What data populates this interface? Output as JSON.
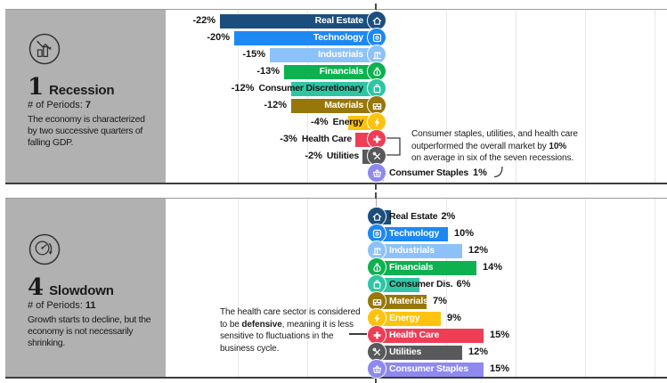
{
  "palette": {
    "sidebar_bg": "#b1b1b1",
    "panel_border": "#3c3c3c",
    "gridline": "#e8e8e8",
    "axis": "#ababab",
    "text": "#1a1a1a",
    "real_estate": "#1c4e7d",
    "technology": "#1e88f2",
    "industrials": "#8cc2f9",
    "financials": "#0db14f",
    "consumer_discretionary": "#2fc5a4",
    "materials": "#97770a",
    "energy": "#fec30f",
    "health_care": "#ef3d56",
    "utilities": "#58595b",
    "consumer_staples": "#8e89ee"
  },
  "panels": [
    {
      "number": "1",
      "title": "Recession",
      "periods_label": "# of Periods:",
      "periods_value": "7",
      "icon": "declining-chart-icon",
      "description_lines": [
        "The economy is characterized",
        "by two successive quarters of",
        "falling GDP."
      ],
      "bars": [
        {
          "sector": "Real Estate",
          "value": -22,
          "display": "-22%",
          "color": "#1c4e7d",
          "icon": "house-icon",
          "label": "in"
        },
        {
          "sector": "Technology",
          "value": -20,
          "display": "-20%",
          "color": "#1e88f2",
          "icon": "monitor-icon",
          "label": "in"
        },
        {
          "sector": "Industrials",
          "value": -15,
          "display": "-15%",
          "color": "#8cc2f9",
          "icon": "crane-icon",
          "label": "in"
        },
        {
          "sector": "Financials",
          "value": -13,
          "display": "-13%",
          "color": "#0db14f",
          "icon": "money-bag-icon",
          "label": "in"
        },
        {
          "sector": "Consumer Discretionary",
          "value": -12,
          "display": "-12%",
          "color": "#2fc5a4",
          "icon": "shopping-bag-icon",
          "label": "over"
        },
        {
          "sector": "Materials",
          "value": -12,
          "display": "-12%",
          "color": "#97770a",
          "icon": "bricks-icon",
          "label": "in"
        },
        {
          "sector": "Energy",
          "value": -4,
          "display": "-4%",
          "color": "#fec30f",
          "icon": "lightning-icon",
          "label": "over"
        },
        {
          "sector": "Health Care",
          "value": -3,
          "display": "-3%",
          "color": "#ef3d56",
          "icon": "medical-cross-icon",
          "label": "out"
        },
        {
          "sector": "Utilities",
          "value": -2,
          "display": "-2%",
          "color": "#58595b",
          "icon": "tools-icon",
          "label": "out"
        },
        {
          "sector": "Consumer Staples",
          "value": 1,
          "display": "1%",
          "color": "#8e89ee",
          "icon": "basket-icon",
          "label": "right"
        }
      ],
      "annotation": {
        "lines": [
          [
            {
              "t": "Consumer staples, utilities, and health care"
            }
          ],
          [
            {
              "t": "outperformed the overall market by "
            },
            {
              "t": "10%",
              "b": true
            }
          ],
          [
            {
              "t": "on average in six of the seven recessions."
            }
          ]
        ]
      }
    },
    {
      "number": "4",
      "title": "Slowdown",
      "periods_label": "# of Periods:",
      "periods_value": "11",
      "icon": "gauge-down-icon",
      "description_lines": [
        "Growth starts to decline, but the",
        "economy is not necessarily shrinking."
      ],
      "bars": [
        {
          "sector": "Real Estate",
          "value": 2,
          "display": "2%",
          "color": "#1c4e7d",
          "icon": "house-icon",
          "label": "out"
        },
        {
          "sector": "Technology",
          "value": 10,
          "display": "10%",
          "color": "#1e88f2",
          "icon": "monitor-icon",
          "label": "in"
        },
        {
          "sector": "Industrials",
          "value": 12,
          "display": "12%",
          "color": "#8cc2f9",
          "icon": "crane-icon",
          "label": "in"
        },
        {
          "sector": "Financials",
          "value": 14,
          "display": "14%",
          "color": "#0db14f",
          "icon": "money-bag-icon",
          "label": "in"
        },
        {
          "sector": "Consumer Dis.",
          "value": 6,
          "display": "6%",
          "color": "#2fc5a4",
          "icon": "shopping-bag-icon",
          "label": "out"
        },
        {
          "sector": "Materials",
          "value": 7,
          "display": "7%",
          "color": "#97770a",
          "icon": "bricks-icon",
          "label": "in"
        },
        {
          "sector": "Energy",
          "value": 9,
          "display": "9%",
          "color": "#fec30f",
          "icon": "lightning-icon",
          "label": "in"
        },
        {
          "sector": "Health Care",
          "value": 15,
          "display": "15%",
          "color": "#ef3d56",
          "icon": "medical-cross-icon",
          "label": "in"
        },
        {
          "sector": "Utilities",
          "value": 12,
          "display": "12%",
          "color": "#58595b",
          "icon": "tools-icon",
          "label": "in"
        },
        {
          "sector": "Consumer Staples",
          "value": 15,
          "display": "15%",
          "color": "#8e89ee",
          "icon": "basket-icon",
          "label": "in"
        }
      ],
      "annotation": {
        "lines": [
          [
            {
              "t": "The health care sector is considered"
            }
          ],
          [
            {
              "t": "to be "
            },
            {
              "t": "defensive",
              "b": true
            },
            {
              "t": ", meaning it is less"
            }
          ],
          [
            {
              "t": "sensitive to fluctuations in the"
            }
          ],
          [
            {
              "t": "business cycle."
            }
          ]
        ]
      }
    }
  ],
  "chart_data": [
    {
      "type": "bar",
      "orientation": "horizontal",
      "unit": "%",
      "title": "1 Recession",
      "subtitle": "# of Periods: 7",
      "categories": [
        "Real Estate",
        "Technology",
        "Industrials",
        "Financials",
        "Consumer Discretionary",
        "Materials",
        "Energy",
        "Health Care",
        "Utilities",
        "Consumer Staples"
      ],
      "values": [
        -22,
        -20,
        -15,
        -13,
        -12,
        -12,
        -4,
        -3,
        -2,
        1
      ],
      "annotation": "Consumer staples, utilities, and health care outperformed the overall market by 10% on average in six of the seven recessions.",
      "xlim": [
        -30,
        40
      ],
      "grid": "vertical"
    },
    {
      "type": "bar",
      "orientation": "horizontal",
      "unit": "%",
      "title": "4 Slowdown",
      "subtitle": "# of Periods: 11",
      "categories": [
        "Real Estate",
        "Technology",
        "Industrials",
        "Financials",
        "Consumer Dis.",
        "Materials",
        "Energy",
        "Health Care",
        "Utilities",
        "Consumer Staples"
      ],
      "values": [
        2,
        10,
        12,
        14,
        6,
        7,
        9,
        15,
        12,
        15
      ],
      "annotation": "The health care sector is considered to be defensive, meaning it is less sensitive to fluctuations in the business cycle.",
      "xlim": [
        -30,
        40
      ],
      "grid": "vertical"
    }
  ]
}
